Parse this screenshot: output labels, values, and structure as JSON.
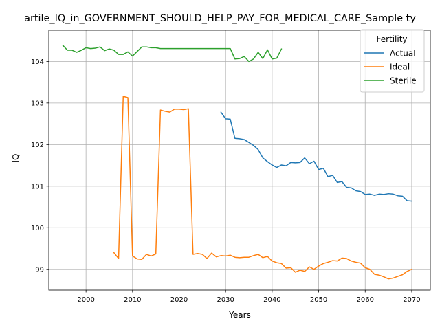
{
  "chart_data": {
    "type": "line",
    "title": "artile_IQ_in_GOVERNMENT_SHOULD_HELP_PAY_FOR_MEDICAL_CARE_Sample ty",
    "xlabel": "Years",
    "ylabel": "IQ",
    "xlim": [
      1992,
      2074
    ],
    "ylim": [
      98.5,
      104.75
    ],
    "xticks": [
      2000,
      2010,
      2020,
      2030,
      2040,
      2050,
      2060,
      2070
    ],
    "yticks": [
      99,
      100,
      101,
      102,
      103,
      104
    ],
    "grid": true,
    "legend": {
      "title": "Fertility",
      "placement": "top-right"
    },
    "series": [
      {
        "name": "Actual",
        "color": "#1f77b4",
        "x": [
          2029,
          2030,
          2031,
          2032,
          2033,
          2034,
          2035,
          2036,
          2037,
          2038,
          2039,
          2040,
          2041,
          2042,
          2043,
          2044,
          2045,
          2046,
          2047,
          2048,
          2049,
          2050,
          2051,
          2052,
          2053,
          2054,
          2055,
          2056,
          2057,
          2058,
          2059,
          2060,
          2061,
          2062,
          2063,
          2064,
          2065,
          2066,
          2067,
          2068,
          2069,
          2070
        ],
        "y": [
          102.78,
          102.62,
          102.61,
          102.15,
          102.14,
          102.12,
          102.05,
          101.98,
          101.88,
          101.68,
          101.59,
          101.51,
          101.45,
          101.51,
          101.49,
          101.57,
          101.56,
          101.57,
          101.68,
          101.54,
          101.6,
          101.4,
          101.43,
          101.23,
          101.26,
          101.09,
          101.11,
          100.97,
          100.96,
          100.89,
          100.87,
          100.8,
          100.81,
          100.78,
          100.81,
          100.8,
          100.82,
          100.81,
          100.77,
          100.76,
          100.65,
          100.64
        ]
      },
      {
        "name": "Ideal",
        "color": "#ff7f0e",
        "x": [
          2006,
          2007,
          2008,
          2009,
          2010,
          2011,
          2012,
          2013,
          2014,
          2015,
          2016,
          2017,
          2018,
          2019,
          2020,
          2021,
          2022,
          2023,
          2024,
          2025,
          2026,
          2027,
          2028,
          2029,
          2030,
          2031,
          2032,
          2033,
          2034,
          2035,
          2036,
          2037,
          2038,
          2039,
          2040,
          2041,
          2042,
          2043,
          2044,
          2045,
          2046,
          2047,
          2048,
          2049,
          2050,
          2051,
          2052,
          2053,
          2054,
          2055,
          2056,
          2057,
          2058,
          2059,
          2060,
          2061,
          2062,
          2063,
          2064,
          2065,
          2066,
          2067,
          2068,
          2069,
          2070
        ],
        "y": [
          99.4,
          99.26,
          103.16,
          103.13,
          99.32,
          99.25,
          99.24,
          99.36,
          99.32,
          99.37,
          102.83,
          102.8,
          102.78,
          102.85,
          102.85,
          102.84,
          102.86,
          99.36,
          99.38,
          99.36,
          99.26,
          99.39,
          99.3,
          99.33,
          99.32,
          99.34,
          99.29,
          99.28,
          99.29,
          99.29,
          99.33,
          99.36,
          99.28,
          99.31,
          99.2,
          99.16,
          99.14,
          99.03,
          99.04,
          98.93,
          98.98,
          98.95,
          99.06,
          99.0,
          99.08,
          99.14,
          99.17,
          99.21,
          99.2,
          99.27,
          99.26,
          99.2,
          99.17,
          99.15,
          99.04,
          99.0,
          98.88,
          98.86,
          98.82,
          98.77,
          98.79,
          98.83,
          98.87,
          98.95,
          99.0
        ]
      },
      {
        "name": "Sterile",
        "color": "#2ca02c",
        "x": [
          1995,
          1996,
          1997,
          1998,
          1999,
          2000,
          2001,
          2002,
          2003,
          2004,
          2005,
          2006,
          2007,
          2008,
          2009,
          2010,
          2011,
          2012,
          2013,
          2014,
          2015,
          2016,
          2017,
          2018,
          2019,
          2020,
          2021,
          2022,
          2023,
          2024,
          2025,
          2026,
          2027,
          2028,
          2029,
          2030,
          2031,
          2032,
          2033,
          2034,
          2035,
          2036,
          2037,
          2038,
          2039,
          2040,
          2041,
          2042
        ],
        "y": [
          104.39,
          104.27,
          104.27,
          104.22,
          104.27,
          104.33,
          104.31,
          104.32,
          104.35,
          104.26,
          104.3,
          104.27,
          104.17,
          104.17,
          104.23,
          104.13,
          104.24,
          104.35,
          104.35,
          104.33,
          104.33,
          104.31,
          104.31,
          104.31,
          104.31,
          104.31,
          104.31,
          104.31,
          104.31,
          104.31,
          104.31,
          104.31,
          104.31,
          104.31,
          104.31,
          104.31,
          104.31,
          104.06,
          104.07,
          104.12,
          104.0,
          104.06,
          104.22,
          104.07,
          104.28,
          104.06,
          104.08,
          104.3
        ]
      }
    ]
  }
}
